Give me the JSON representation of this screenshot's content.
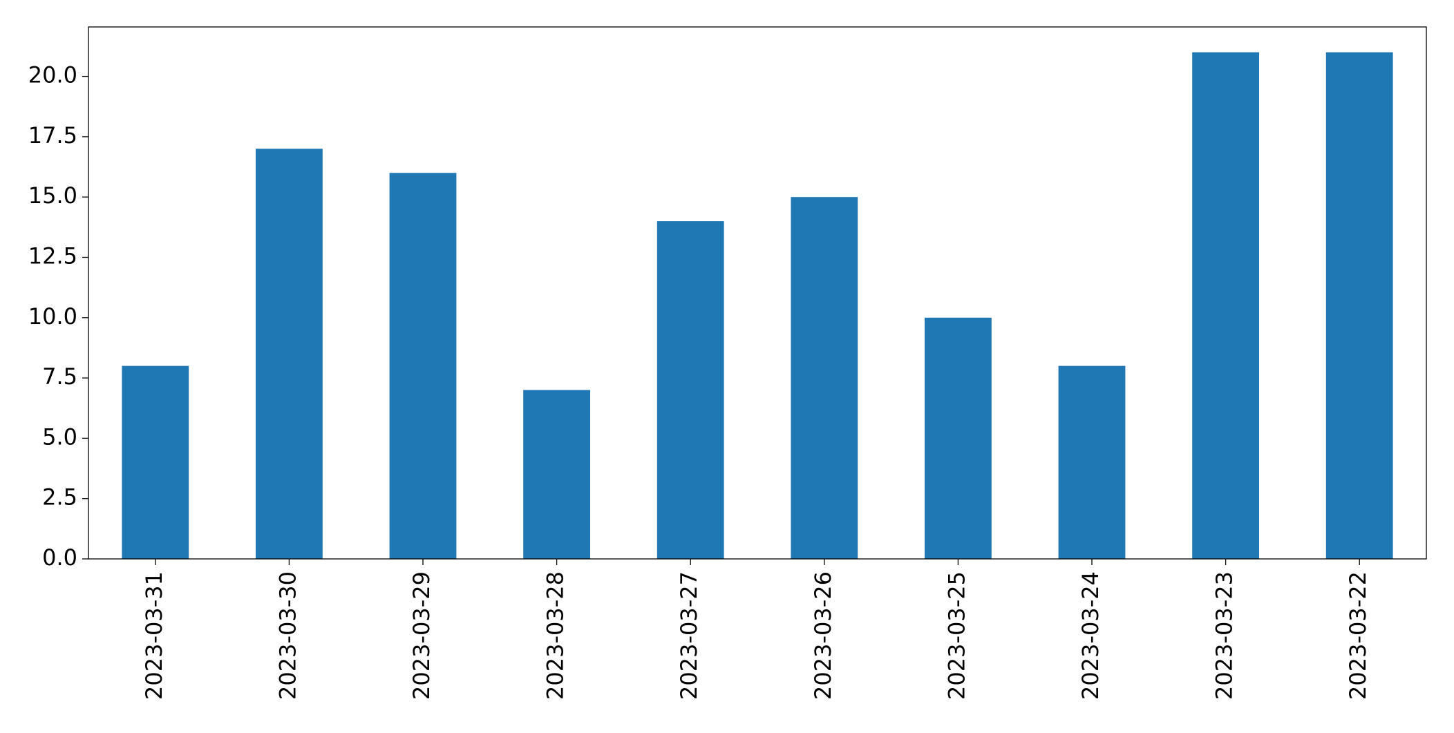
{
  "chart_data": {
    "type": "bar",
    "categories": [
      "2023-03-31",
      "2023-03-30",
      "2023-03-29",
      "2023-03-28",
      "2023-03-27",
      "2023-03-26",
      "2023-03-25",
      "2023-03-24",
      "2023-03-23",
      "2023-03-22"
    ],
    "values": [
      8,
      17,
      16,
      7,
      14,
      15,
      10,
      8,
      21,
      21
    ],
    "color": "#1f77b4",
    "ylim": [
      0,
      22.05
    ],
    "yticks": [
      {
        "value": 0,
        "label": "0.0"
      },
      2.5,
      {
        "value": 5,
        "label": "5.0"
      },
      7.5,
      {
        "value": 10,
        "label": "10.0"
      },
      12.5,
      {
        "value": 15,
        "label": "15.0"
      },
      17.5,
      {
        "value": 20,
        "label": "20.0"
      }
    ],
    "grid": false
  }
}
